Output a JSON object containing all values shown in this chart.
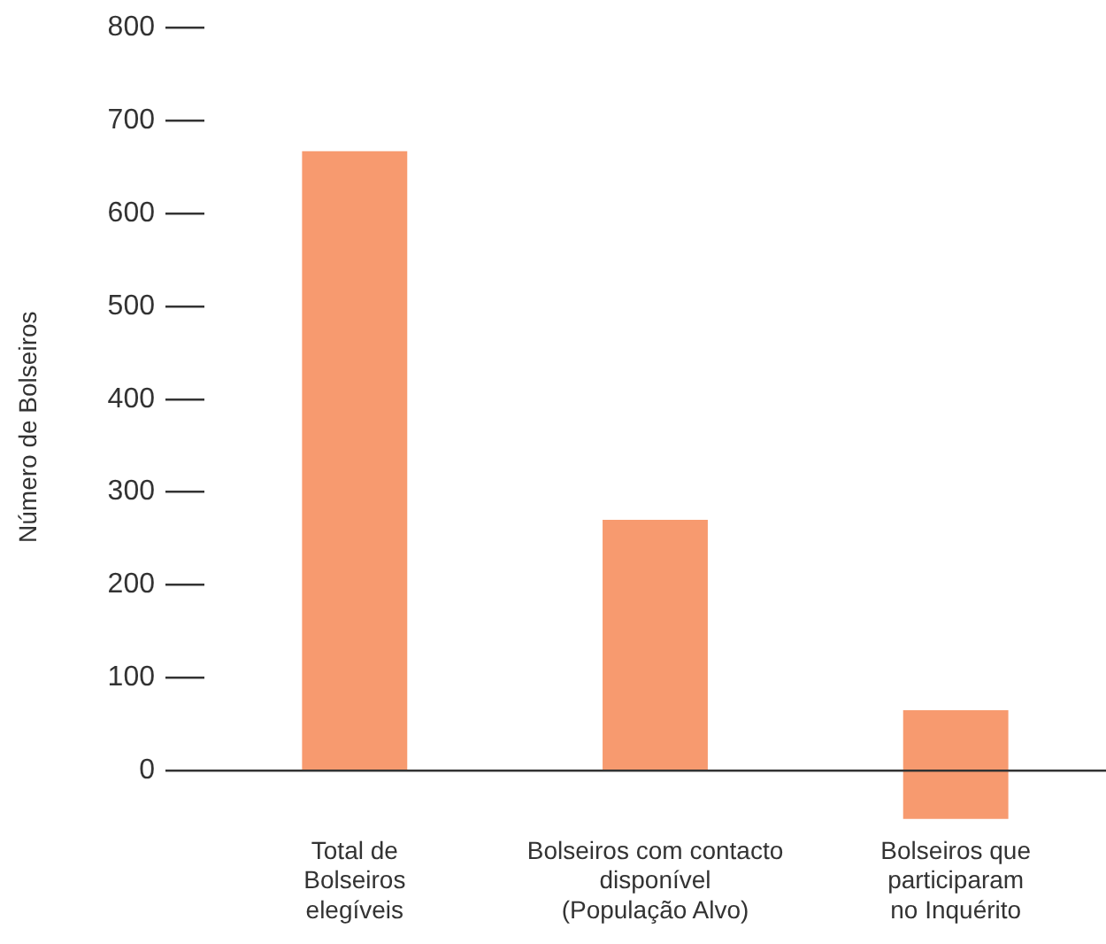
{
  "chart_data": {
    "type": "bar",
    "ylabel": "Número de Bolseiros",
    "categories": [
      "Total de\nBolseiros\nelegíveis",
      "Bolseiros com contacto\ndisponível\n(População Alvo)",
      "Bolseiros que\nparticiparam\nno Inquérito"
    ],
    "values": [
      667,
      270,
      117
    ],
    "base": [
      0,
      0,
      -52
    ],
    "color": "#f79a6f",
    "ylim": [
      -60,
      800
    ],
    "yticks": [
      0,
      100,
      200,
      300,
      400,
      500,
      600,
      700,
      800
    ],
    "legend": false
  }
}
